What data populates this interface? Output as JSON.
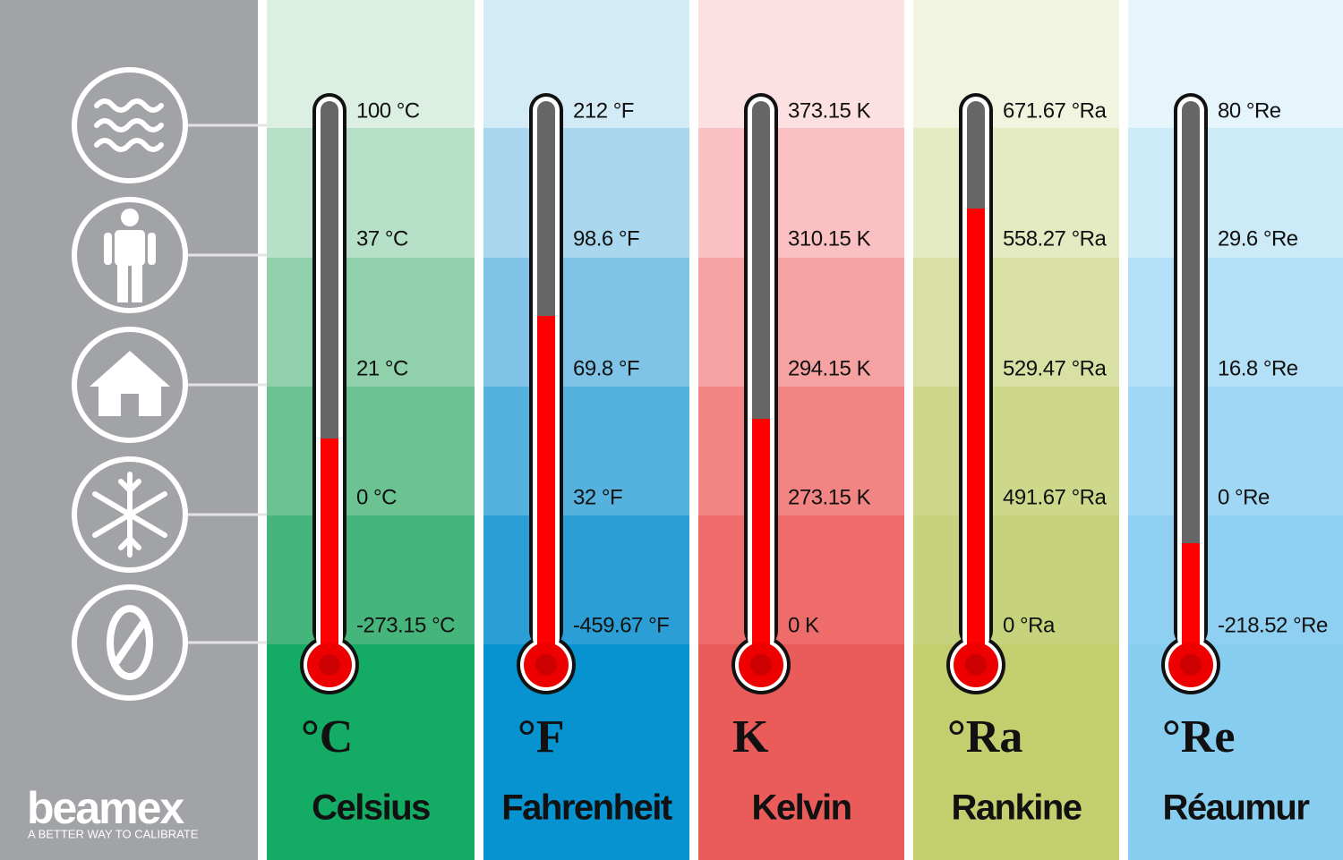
{
  "brand": {
    "name": "beamex",
    "tagline": "A BETTER WAY TO CALIBRATE"
  },
  "scales": [
    {
      "symbol": "°C",
      "name": "Celsius",
      "labels": [
        "100 °C",
        "37 °C",
        "21 °C",
        "0 °C",
        "-273.15 °C"
      ]
    },
    {
      "symbol": "°F",
      "name": "Fahrenheit",
      "labels": [
        "212 °F",
        "98.6 °F",
        "69.8 °F",
        "32 °F",
        "-459.67 °F"
      ]
    },
    {
      "symbol": "K",
      "name": "Kelvin",
      "labels": [
        "373.15 K",
        "310.15 K",
        "294.15 K",
        "273.15 K",
        "0 K"
      ]
    },
    {
      "symbol": "°Ra",
      "name": "Rankine",
      "labels": [
        "671.67 °Ra",
        "558.27 °Ra",
        "529.47 °Ra",
        "491.67 °Ra",
        "0 °Ra"
      ]
    },
    {
      "symbol": "°Re",
      "name": "Réaumur",
      "labels": [
        "80 °Re",
        "29.6 °Re",
        "16.8 °Re",
        "0 °Re",
        "-218.52 °Re"
      ]
    }
  ]
}
